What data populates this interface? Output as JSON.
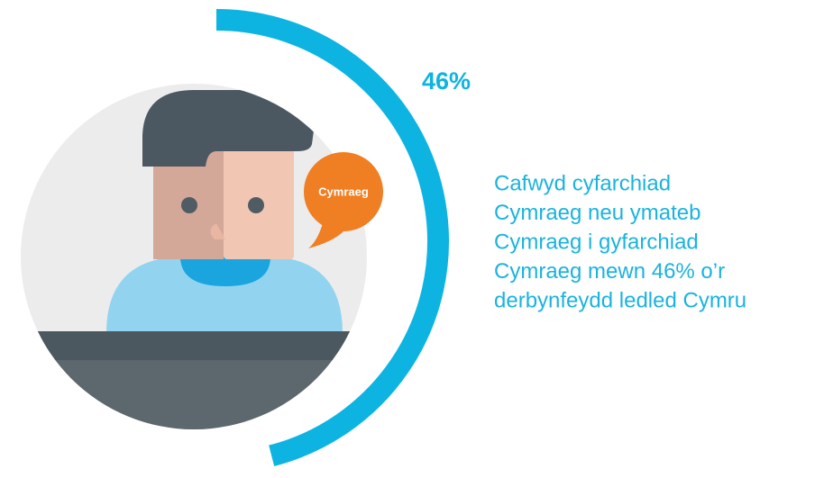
{
  "chart_data": {
    "type": "ring",
    "value": 46,
    "value_label": "46%",
    "max": 100,
    "color": "#0db4e2",
    "bubble": "Cymraeg",
    "caption": [
      "Cafwyd cyfarchiad",
      "Cymraeg neu ymateb",
      "Cymraeg i gyfarchiad",
      "Cymraeg mewn 46% o’r",
      "derbynfeydd ledled Cymru"
    ]
  }
}
